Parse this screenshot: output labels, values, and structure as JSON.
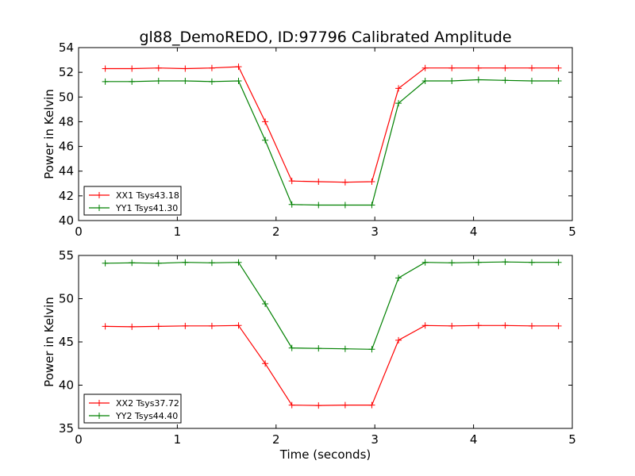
{
  "chart_data": [
    {
      "type": "line",
      "title": "gl88_DemoREDO, ID:97796 Calibrated Amplitude",
      "xlabel": "",
      "ylabel": "Power in Kelvin",
      "xlim": [
        0,
        5
      ],
      "ylim": [
        40,
        54
      ],
      "xticks": [
        "0",
        "1",
        "2",
        "3",
        "4",
        "5"
      ],
      "yticks": [
        "40",
        "42",
        "44",
        "46",
        "48",
        "50",
        "52",
        "54"
      ],
      "legend_position": "lower-left",
      "x": [
        0.27,
        0.54,
        0.81,
        1.08,
        1.35,
        1.62,
        1.89,
        2.16,
        2.43,
        2.7,
        2.97,
        3.24,
        3.51,
        3.78,
        4.05,
        4.32,
        4.59,
        4.86
      ],
      "series": [
        {
          "name": "XX1 Tsys43.18",
          "color": "#ff0000",
          "values": [
            52.3,
            52.3,
            52.35,
            52.3,
            52.35,
            52.45,
            48.0,
            43.2,
            43.15,
            43.1,
            43.15,
            50.7,
            52.35,
            52.35,
            52.35,
            52.35,
            52.35,
            52.35
          ]
        },
        {
          "name": "YY1 Tsys41.30",
          "color": "#008000",
          "values": [
            51.25,
            51.25,
            51.3,
            51.3,
            51.25,
            51.3,
            46.5,
            41.3,
            41.25,
            41.25,
            41.25,
            49.5,
            51.3,
            51.3,
            51.4,
            51.35,
            51.3,
            51.3
          ]
        }
      ]
    },
    {
      "type": "line",
      "title": "",
      "xlabel": "Time (seconds)",
      "ylabel": "Power in Kelvin",
      "xlim": [
        0,
        5
      ],
      "ylim": [
        35,
        55
      ],
      "xticks": [
        "0",
        "1",
        "2",
        "3",
        "4",
        "5"
      ],
      "yticks": [
        "35",
        "40",
        "45",
        "50",
        "55"
      ],
      "legend_position": "lower-left",
      "x": [
        0.27,
        0.54,
        0.81,
        1.08,
        1.35,
        1.62,
        1.89,
        2.16,
        2.43,
        2.7,
        2.97,
        3.24,
        3.51,
        3.78,
        4.05,
        4.32,
        4.59,
        4.86
      ],
      "series": [
        {
          "name": "XX2 Tsys37.72",
          "color": "#ff0000",
          "values": [
            46.8,
            46.75,
            46.8,
            46.85,
            46.85,
            46.9,
            42.5,
            37.7,
            37.65,
            37.7,
            37.7,
            45.2,
            46.9,
            46.85,
            46.9,
            46.9,
            46.85,
            46.85
          ]
        },
        {
          "name": "YY2 Tsys44.40",
          "color": "#008000",
          "values": [
            54.1,
            54.15,
            54.1,
            54.2,
            54.15,
            54.2,
            49.4,
            44.3,
            44.25,
            44.2,
            44.15,
            52.4,
            54.2,
            54.15,
            54.2,
            54.25,
            54.2,
            54.2
          ]
        }
      ]
    }
  ]
}
